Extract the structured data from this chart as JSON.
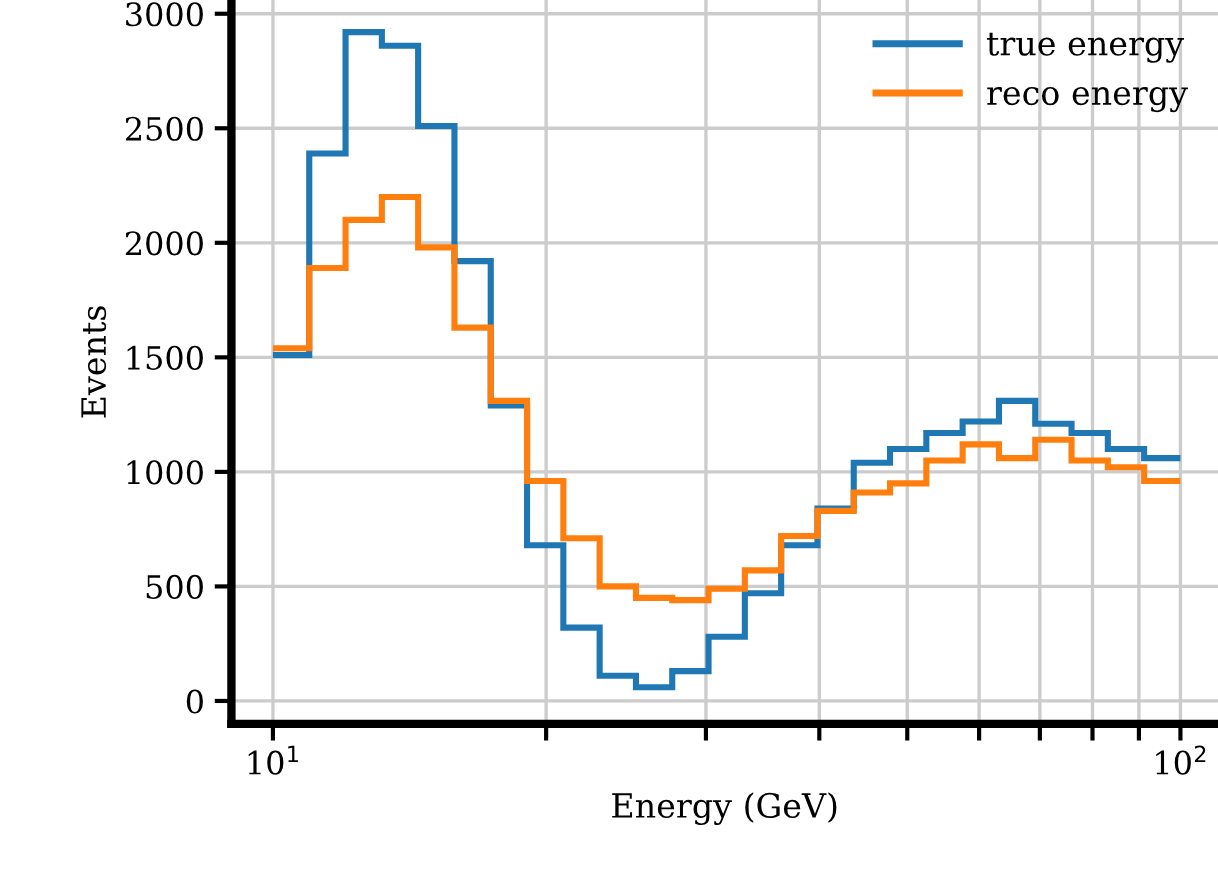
{
  "chart_data": {
    "type": "histogram",
    "xlabel": "Energy (GeV)",
    "ylabel": "Events",
    "bins": [
      10.0,
      10.965,
      12.023,
      13.183,
      14.454,
      15.849,
      17.378,
      19.055,
      20.893,
      22.909,
      25.119,
      27.542,
      30.2,
      33.113,
      36.308,
      39.811,
      43.652,
      47.863,
      52.481,
      57.544,
      63.096,
      69.183,
      75.858,
      83.176,
      91.201,
      100.0
    ],
    "series": [
      {
        "name": "true energy",
        "color": "#1f77b4",
        "values": [
          1510,
          2390,
          2920,
          2860,
          2510,
          1920,
          1290,
          680,
          320,
          110,
          60,
          130,
          280,
          470,
          680,
          840,
          1040,
          1100,
          1170,
          1220,
          1310,
          1210,
          1170,
          1100,
          1060
        ]
      },
      {
        "name": "reco energy",
        "color": "#ff7f0e",
        "values": [
          1540,
          1890,
          2100,
          2200,
          1980,
          1630,
          1310,
          960,
          710,
          500,
          450,
          440,
          490,
          570,
          720,
          830,
          910,
          950,
          1050,
          1120,
          1060,
          1140,
          1050,
          1020,
          960
        ]
      }
    ],
    "log": "x",
    "xlim": [
      9,
      110
    ],
    "xticks": [
      {
        "value": 10,
        "label": "10$^{1}$"
      },
      {
        "value": 20,
        "label": null
      },
      {
        "value": 30,
        "label": null
      },
      {
        "value": 40,
        "label": null
      },
      {
        "value": 50,
        "label": null
      },
      {
        "value": 60,
        "label": null
      },
      {
        "value": 70,
        "label": null
      },
      {
        "value": 80,
        "label": null
      },
      {
        "value": 90,
        "label": null
      },
      {
        "value": 100,
        "label": "10$^{2}$"
      }
    ],
    "ylim": [
      -100,
      3060
    ],
    "yticks": [
      0,
      500,
      1000,
      1500,
      2000,
      2500,
      3000
    ],
    "grid": true,
    "legend": "top right"
  }
}
